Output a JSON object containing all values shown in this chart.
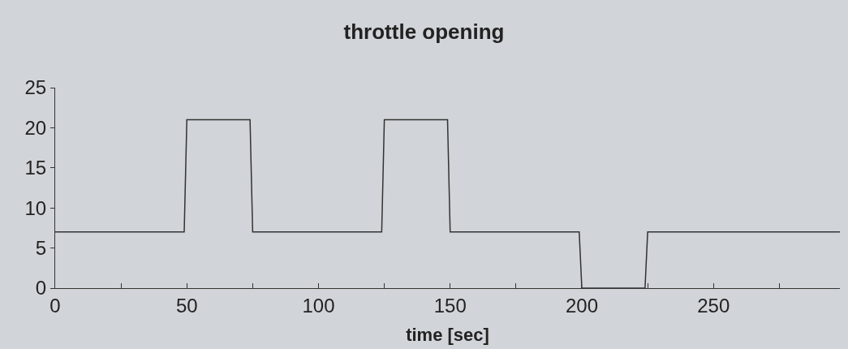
{
  "chart_data": {
    "type": "line",
    "title": "throttle opening",
    "xlabel": "time [sec]",
    "x": [
      0,
      49,
      50,
      74,
      75,
      124,
      125,
      149,
      150,
      199,
      200,
      224,
      225,
      298
    ],
    "series": [
      {
        "color": "#333333",
        "values": [
          7,
          7,
          21,
          21,
          7,
          7,
          21,
          21,
          7,
          7,
          0,
          0,
          7,
          7
        ]
      }
    ],
    "xlim": [
      0,
      298
    ],
    "xticks": [
      0,
      {
        "value": 25,
        "label": null
      },
      50,
      {
        "value": 75,
        "label": null
      },
      100,
      {
        "value": 125,
        "label": null
      },
      150,
      {
        "value": 175,
        "label": null
      },
      200,
      {
        "value": 225,
        "label": null
      },
      250,
      {
        "value": 275,
        "label": null
      }
    ],
    "ylim": [
      0,
      25
    ],
    "yticks": [
      0,
      5,
      10,
      15,
      20,
      25
    ],
    "grid": false,
    "marker": "none",
    "line_style": "solid"
  }
}
